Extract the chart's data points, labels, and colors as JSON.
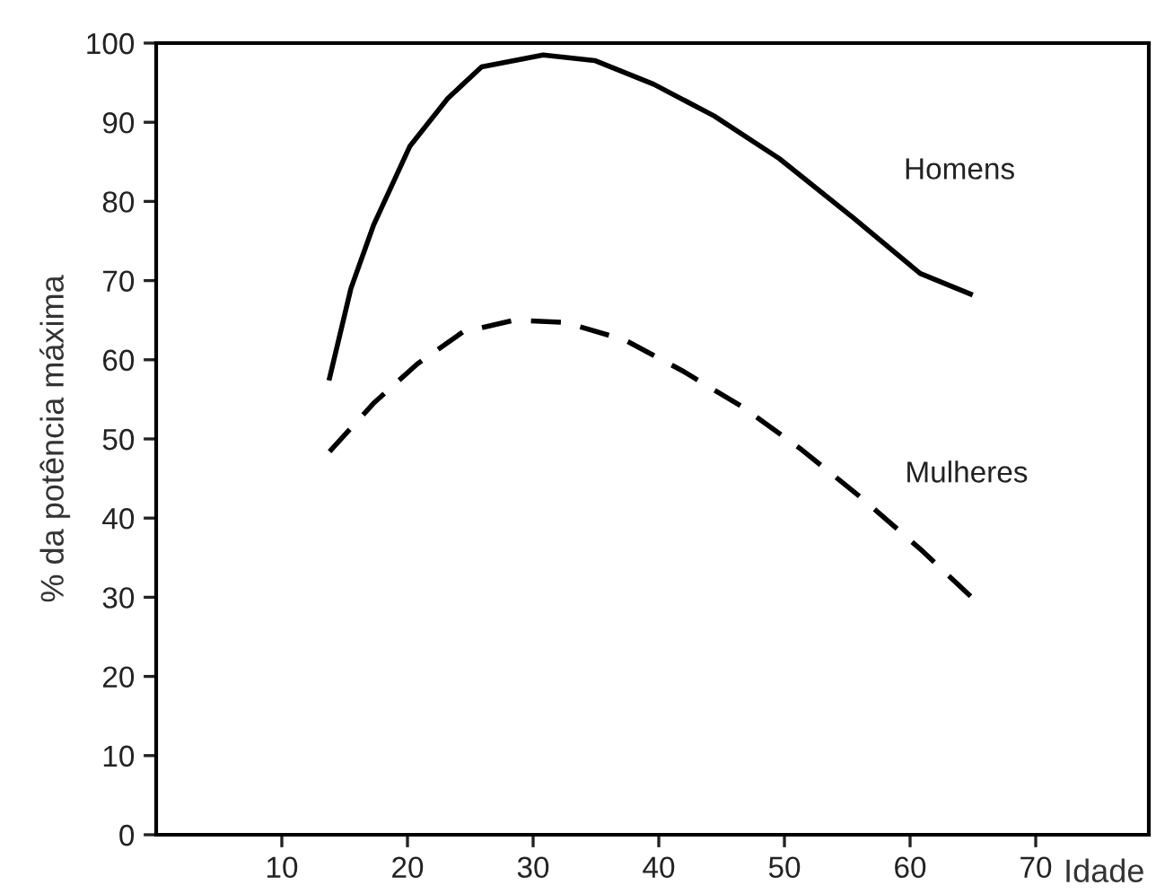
{
  "chart_data": {
    "type": "line",
    "xlabel": "Idade",
    "ylabel": "% da potência máxima",
    "xlim": [
      0,
      79
    ],
    "ylim": [
      0,
      100
    ],
    "xticks": [
      10,
      20,
      30,
      40,
      50,
      60,
      70
    ],
    "yticks": [
      0,
      10,
      20,
      30,
      40,
      50,
      60,
      70,
      80,
      90,
      100
    ],
    "grid": false,
    "legend": false,
    "marker": "none",
    "series": [
      {
        "name": "Homens",
        "color": "#000000",
        "line_style": "solid",
        "x": [
          13.8,
          15.5,
          17.3,
          20.2,
          23.2,
          25.9,
          30.8,
          34.9,
          39.6,
          44.4,
          49.6,
          55.5,
          60.8,
          64.8
        ],
        "values": [
          57.7,
          69,
          77,
          87,
          93,
          97,
          98.5,
          97.8,
          94.8,
          90.8,
          85.4,
          77.9,
          70.9,
          68.3
        ]
      },
      {
        "name": "Mulheres",
        "color": "#000000",
        "line_style": "dashed",
        "x": [
          13.8,
          17.3,
          20.8,
          24.4,
          28.5,
          32.6,
          37.3,
          42,
          46.7,
          51.4,
          56.1,
          60.8,
          64.9
        ],
        "values": [
          48.4,
          54.5,
          59.5,
          63.5,
          65,
          64.7,
          62.5,
          58.5,
          54,
          48.6,
          42.6,
          36.1,
          30
        ]
      }
    ]
  }
}
